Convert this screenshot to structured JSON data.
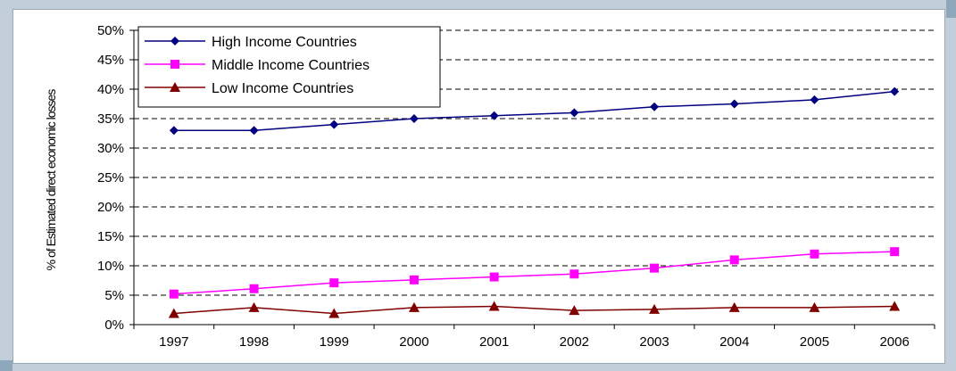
{
  "chart_data": {
    "type": "line",
    "title": "",
    "xlabel": "",
    "ylabel": "% of Estimated direct economic losses",
    "categories": [
      "1997",
      "1998",
      "1999",
      "2000",
      "2001",
      "2002",
      "2003",
      "2004",
      "2005",
      "2006"
    ],
    "ylim": [
      0,
      50
    ],
    "y_ticks": [
      "0%",
      "5%",
      "10%",
      "15%",
      "20%",
      "25%",
      "30%",
      "35%",
      "40%",
      "45%",
      "50%"
    ],
    "grid": "horizontal dashed",
    "legend_position": "top-left",
    "series": [
      {
        "name": "High Income Countries",
        "marker": "diamond",
        "color": "#000080",
        "values": [
          33,
          33,
          34,
          35,
          35.5,
          36,
          37,
          37.5,
          38.2,
          39.6
        ]
      },
      {
        "name": "Middle Income Countries",
        "marker": "square",
        "color": "#ff00ff",
        "values": [
          5.2,
          6.1,
          7.1,
          7.6,
          8.1,
          8.6,
          9.6,
          11,
          12,
          12.4
        ]
      },
      {
        "name": "Low  Income Countries",
        "marker": "triangle",
        "color": "#800000",
        "values": [
          1.9,
          2.9,
          1.9,
          2.9,
          3.1,
          2.4,
          2.6,
          2.9,
          2.9,
          3.1
        ]
      }
    ]
  }
}
